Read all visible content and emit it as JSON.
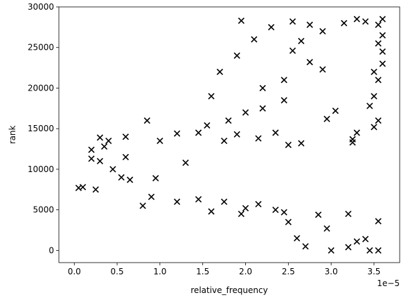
{
  "chart_data": {
    "type": "scatter",
    "xlabel": "relative_frequency",
    "ylabel": "rank",
    "x_offset_label": "1e−5",
    "x_multiplier": 1e-05,
    "xlim": [
      -1.8e-06,
      3.8e-05
    ],
    "ylim": [
      -1500,
      30000
    ],
    "x_ticks": [
      0,
      5e-06,
      1e-05,
      1.5e-05,
      2e-05,
      2.5e-05,
      3e-05,
      3.5e-05
    ],
    "x_tick_labels": [
      "0.0",
      "0.5",
      "1.0",
      "1.5",
      "2.0",
      "2.5",
      "3.0",
      "3.5"
    ],
    "y_ticks": [
      0,
      5000,
      10000,
      15000,
      20000,
      25000,
      30000
    ],
    "y_tick_labels": [
      "0",
      "5000",
      "10000",
      "15000",
      "20000",
      "25000",
      "30000"
    ],
    "grid": false,
    "marker": "x",
    "marker_color": "#000000",
    "series": [
      {
        "points": [
          [
            5e-07,
            7700
          ],
          [
            1e-06,
            7800
          ],
          [
            2.5e-06,
            7500
          ],
          [
            3e-06,
            11000
          ],
          [
            4.5e-06,
            10000
          ],
          [
            5.5e-06,
            9000
          ],
          [
            6.5e-06,
            8700
          ],
          [
            9.5e-06,
            8900
          ],
          [
            1.3e-05,
            10800
          ],
          [
            6e-06,
            11500
          ],
          [
            2e-06,
            11300
          ],
          [
            1.45e-05,
            6300
          ],
          [
            1.75e-05,
            6000
          ],
          [
            2.15e-05,
            5700
          ],
          [
            2.35e-05,
            5000
          ],
          [
            2.45e-05,
            4700
          ],
          [
            2.85e-05,
            4400
          ],
          [
            3.2e-05,
            4500
          ],
          [
            3.55e-05,
            3600
          ],
          [
            2e-05,
            5200
          ],
          [
            1.95e-05,
            4500
          ],
          [
            1.6e-05,
            4800
          ],
          [
            1.2e-05,
            6000
          ],
          [
            8e-06,
            5500
          ],
          [
            9e-06,
            6600
          ],
          [
            2.5e-05,
            3500
          ],
          [
            2.95e-05,
            2700
          ],
          [
            3.3e-05,
            1100
          ],
          [
            3.4e-05,
            1400
          ],
          [
            3.2e-05,
            400
          ],
          [
            3.55e-05,
            0
          ],
          [
            3.45e-05,
            0
          ],
          [
            3e-05,
            0
          ],
          [
            2.6e-05,
            1500
          ],
          [
            2.7e-05,
            500
          ],
          [
            8.5e-06,
            16000
          ],
          [
            1.45e-05,
            14500
          ],
          [
            1.9e-05,
            14300
          ],
          [
            2.35e-05,
            14500
          ],
          [
            2.65e-05,
            13200
          ],
          [
            2.5e-05,
            13000
          ],
          [
            3.25e-05,
            13700
          ],
          [
            3.25e-05,
            13300
          ],
          [
            3.5e-05,
            15200
          ],
          [
            3.55e-05,
            16000
          ],
          [
            3.3e-05,
            14500
          ],
          [
            2.95e-05,
            16200
          ],
          [
            3.05e-05,
            17200
          ],
          [
            3.45e-05,
            17800
          ],
          [
            3.5e-05,
            19000
          ],
          [
            3.55e-05,
            21000
          ],
          [
            3.5e-05,
            22000
          ],
          [
            3.6e-05,
            23000
          ],
          [
            3.6e-05,
            24500
          ],
          [
            3.55e-05,
            25500
          ],
          [
            3.6e-05,
            26500
          ],
          [
            3.55e-05,
            27800
          ],
          [
            3.6e-05,
            28500
          ],
          [
            3.4e-05,
            28200
          ],
          [
            3.3e-05,
            28500
          ],
          [
            3.15e-05,
            28000
          ],
          [
            2.9e-05,
            27000
          ],
          [
            2.65e-05,
            25800
          ],
          [
            2.55e-05,
            24600
          ],
          [
            2.75e-05,
            23200
          ],
          [
            2.9e-05,
            22300
          ],
          [
            2.45e-05,
            21000
          ],
          [
            2.2e-05,
            20000
          ],
          [
            2.45e-05,
            18500
          ],
          [
            2.2e-05,
            17500
          ],
          [
            2e-05,
            17000
          ],
          [
            1.8e-05,
            16000
          ],
          [
            1.6e-05,
            19000
          ],
          [
            1.7e-05,
            22000
          ],
          [
            1.9e-05,
            24000
          ],
          [
            2.1e-05,
            26000
          ],
          [
            2.3e-05,
            27500
          ],
          [
            2.55e-05,
            28200
          ],
          [
            2.75e-05,
            27800
          ],
          [
            1.95e-05,
            28300
          ],
          [
            2.15e-05,
            13800
          ],
          [
            1.75e-05,
            13500
          ],
          [
            1.2e-05,
            14400
          ],
          [
            1e-05,
            13500
          ],
          [
            6e-06,
            14000
          ],
          [
            4e-06,
            13500
          ],
          [
            3e-06,
            13900
          ],
          [
            2e-06,
            12400
          ],
          [
            3.5e-06,
            12800
          ],
          [
            1.55e-05,
            15400
          ]
        ]
      }
    ]
  }
}
